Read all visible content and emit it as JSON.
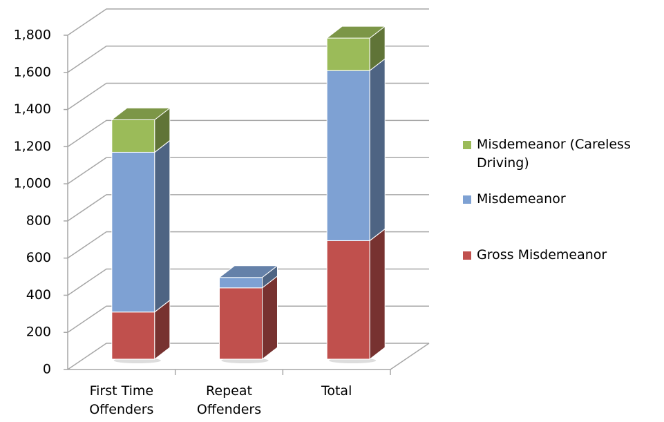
{
  "chart_data": {
    "type": "bar3d-stacked",
    "categories": [
      "First Time Offenders",
      "Repeat Offenders",
      "Total"
    ],
    "series": [
      {
        "name": "Gross Misdemeanor",
        "color": "#c0504d",
        "values": [
          254,
          384,
          638
        ]
      },
      {
        "name": "Misdemeanor",
        "color": "#7ea1d3",
        "values": [
          860,
          56,
          916
        ]
      },
      {
        "name": "Misdemeanor (Careless Driving)",
        "color": "#9bbb59",
        "values": [
          175,
          0,
          175
        ]
      }
    ],
    "ylim": [
      0,
      1800
    ],
    "yticks": [
      0,
      200,
      400,
      600,
      800,
      {
        "value": 1000,
        "label": "1,000"
      },
      {
        "value": 1200,
        "label": "1,200"
      },
      {
        "value": 1400,
        "label": "1,400"
      },
      {
        "value": 1600,
        "label": "1,600"
      },
      {
        "value": 1800,
        "label": "1,800"
      }
    ],
    "grid": true
  }
}
